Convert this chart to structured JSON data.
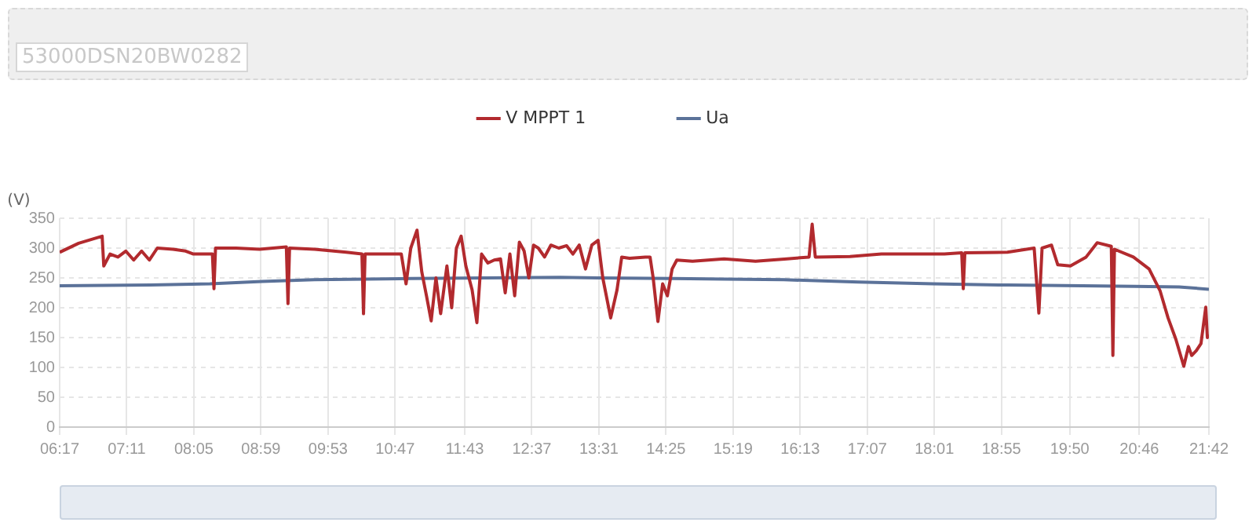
{
  "chart_data": {
    "type": "line",
    "ylabel": "(V)",
    "annotations": [
      "53000DSN20BW0282"
    ],
    "legend": "top",
    "grid": true,
    "line_style": "solid",
    "xlim": [
      6.283,
      21.7
    ],
    "xticks": [
      {
        "value": 6.283,
        "label": "06:17"
      },
      {
        "value": 7.183,
        "label": "07:11"
      },
      {
        "value": 8.083,
        "label": "08:05"
      },
      {
        "value": 8.983,
        "label": "08:59"
      },
      {
        "value": 9.883,
        "label": "09:53"
      },
      {
        "value": 10.783,
        "label": "10:47"
      },
      {
        "value": 11.717,
        "label": "11:43"
      },
      {
        "value": 12.617,
        "label": "12:37"
      },
      {
        "value": 13.517,
        "label": "13:31"
      },
      {
        "value": 14.417,
        "label": "14:25"
      },
      {
        "value": 15.317,
        "label": "15:19"
      },
      {
        "value": 16.217,
        "label": "16:13"
      },
      {
        "value": 17.117,
        "label": "17:07"
      },
      {
        "value": 18.017,
        "label": "18:01"
      },
      {
        "value": 18.917,
        "label": "18:55"
      },
      {
        "value": 19.833,
        "label": "19:50"
      },
      {
        "value": 20.767,
        "label": "20:46"
      },
      {
        "value": 21.7,
        "label": "21:42"
      }
    ],
    "ylim": [
      0,
      350
    ],
    "yticks": [
      0,
      50,
      100,
      150,
      200,
      250,
      300,
      350
    ],
    "series": [
      {
        "name": "V MPPT 1",
        "color": "#b22a2e",
        "x": [
          6.283,
          6.537,
          6.853,
          6.875,
          6.959,
          7.065,
          7.17,
          7.276,
          7.382,
          7.487,
          7.593,
          7.804,
          7.973,
          8.078,
          8.332,
          8.353,
          8.374,
          8.649,
          8.965,
          9.324,
          9.346,
          9.367,
          9.704,
          10.127,
          10.338,
          10.359,
          10.38,
          10.76,
          10.866,
          10.93,
          10.993,
          11.077,
          11.141,
          11.204,
          11.267,
          11.331,
          11.394,
          11.478,
          11.542,
          11.605,
          11.669,
          11.732,
          11.816,
          11.88,
          11.943,
          12.028,
          12.112,
          12.197,
          12.26,
          12.323,
          12.387,
          12.45,
          12.514,
          12.577,
          12.64,
          12.704,
          12.788,
          12.873,
          12.978,
          13.084,
          13.168,
          13.253,
          13.337,
          13.422,
          13.506,
          13.569,
          13.675,
          13.76,
          13.823,
          13.928,
          14.14,
          14.203,
          14.245,
          14.309,
          14.372,
          14.435,
          14.499,
          14.562,
          14.773,
          15.196,
          15.618,
          16.04,
          16.336,
          16.378,
          16.42,
          16.885,
          17.307,
          18.152,
          18.384,
          18.405,
          18.426,
          18.997,
          19.356,
          19.419,
          19.462,
          19.588,
          19.673,
          19.842,
          20.053,
          20.201,
          20.391,
          20.412,
          20.433,
          20.687,
          20.898,
          21.046,
          21.152,
          21.257,
          21.363,
          21.426,
          21.469,
          21.531,
          21.594,
          21.658,
          21.679,
          21.7
        ],
        "values": [
          293,
          308,
          320,
          270,
          290,
          285,
          295,
          280,
          295,
          280,
          300,
          298,
          295,
          290,
          290,
          232,
          300,
          300,
          298,
          302,
          207,
          300,
          298,
          293,
          290,
          190,
          290,
          290,
          290,
          240,
          300,
          330,
          260,
          220,
          178,
          250,
          190,
          270,
          200,
          300,
          320,
          270,
          230,
          175,
          290,
          275,
          280,
          282,
          225,
          290,
          220,
          310,
          295,
          250,
          305,
          300,
          285,
          305,
          300,
          304,
          290,
          305,
          265,
          305,
          313,
          250,
          183,
          230,
          285,
          283,
          285,
          285,
          250,
          177,
          240,
          220,
          265,
          280,
          278,
          282,
          278,
          282,
          285,
          340,
          285,
          286,
          290,
          290,
          292,
          232,
          292,
          293,
          300,
          191,
          300,
          305,
          272,
          270,
          285,
          309,
          303,
          120,
          298,
          285,
          265,
          228,
          183,
          147,
          102,
          135,
          120,
          128,
          140,
          201,
          150,
          155
        ]
      },
      {
        "name": "Ua",
        "color": "#5b7299",
        "x": [
          6.283,
          7.5,
          8.3,
          9,
          9.7,
          10.4,
          11,
          12,
          13,
          13.5,
          14.5,
          15.2,
          16,
          17,
          18,
          19,
          20,
          20.7,
          21.3,
          21.7
        ],
        "values": [
          237,
          238,
          240,
          244,
          247,
          248,
          249,
          250,
          251,
          250,
          249,
          248,
          247,
          243,
          240,
          238,
          237,
          236,
          235,
          231
        ]
      }
    ]
  }
}
